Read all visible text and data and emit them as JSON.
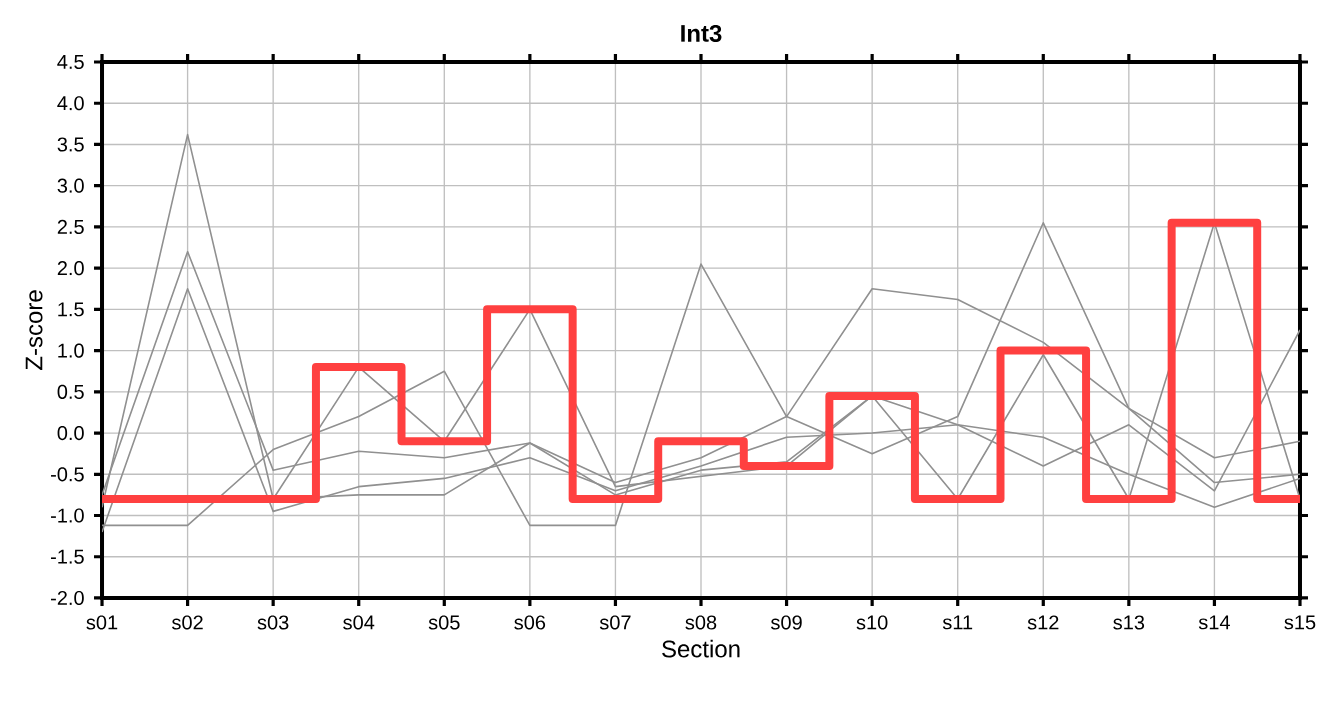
{
  "chart_data": {
    "type": "line",
    "title": "Int3",
    "xlabel": "Section",
    "ylabel": "Z-score",
    "categories": [
      "s01",
      "s02",
      "s03",
      "s04",
      "s05",
      "s06",
      "s07",
      "s08",
      "s09",
      "s10",
      "s11",
      "s12",
      "s13",
      "s14",
      "s15"
    ],
    "ylim": [
      -2.0,
      4.5
    ],
    "yticks": [
      {
        "value": -2.0,
        "label": "-2.0"
      },
      {
        "value": -1.5,
        "label": "-1.5"
      },
      {
        "value": -1.0,
        "label": "-1.0"
      },
      {
        "value": -0.5,
        "label": "-0.5"
      },
      {
        "value": 0.0,
        "label": "0.0"
      },
      {
        "value": 0.5,
        "label": "0.5"
      },
      {
        "value": 1.0,
        "label": "1.0"
      },
      {
        "value": 1.5,
        "label": "1.5"
      },
      {
        "value": 2.0,
        "label": "2.0"
      },
      {
        "value": 2.5,
        "label": "2.5"
      },
      {
        "value": 3.0,
        "label": "3.0"
      },
      {
        "value": 3.5,
        "label": "3.5"
      },
      {
        "value": 4.0,
        "label": "4.0"
      },
      {
        "value": 4.5,
        "label": "4.5"
      }
    ],
    "grid": true,
    "marker": "none",
    "line_style": "solid",
    "series": [
      {
        "color": "#909090",
        "values": [
          -0.9,
          3.62,
          -0.8,
          0.8,
          -0.1,
          1.5,
          -0.65,
          null,
          -0.4,
          0.45,
          -0.8,
          0.95,
          -0.8,
          2.55,
          -0.8
        ]
      },
      {
        "color": "#909090",
        "values": [
          -0.75,
          2.2,
          -0.45,
          -0.22,
          -0.3,
          -0.12,
          -0.6,
          -0.3,
          0.2,
          -0.25,
          0.2,
          2.55,
          0.3,
          -0.6,
          -0.5
        ]
      },
      {
        "color": "#909090",
        "values": [
          -1.2,
          1.75,
          -0.95,
          -0.65,
          -0.55,
          -0.3,
          -0.7,
          -0.4,
          -0.05,
          0.0,
          0.1,
          -0.4,
          0.1,
          -0.7,
          1.25
        ]
      },
      {
        "color": "#909090",
        "values": [
          -1.12,
          -1.12,
          -0.2,
          0.2,
          0.75,
          -1.12,
          -1.12,
          2.05,
          0.2,
          1.75,
          1.62,
          1.1,
          0.3,
          -0.3,
          -0.1
        ]
      },
      {
        "color": "#909090",
        "values": [
          -0.8,
          -0.8,
          -0.8,
          -0.75,
          -0.75,
          -0.12,
          -0.75,
          -0.45,
          -0.35,
          0.45,
          0.1,
          -0.05,
          -0.5,
          -0.9,
          -0.55
        ]
      },
      {
        "type": "step",
        "color": "#ff4040",
        "values": [
          -0.8,
          -0.8,
          -0.8,
          0.8,
          -0.1,
          1.5,
          -0.8,
          -0.1,
          -0.4,
          0.45,
          -0.8,
          1.0,
          -0.8,
          2.55,
          -0.8
        ]
      }
    ]
  }
}
